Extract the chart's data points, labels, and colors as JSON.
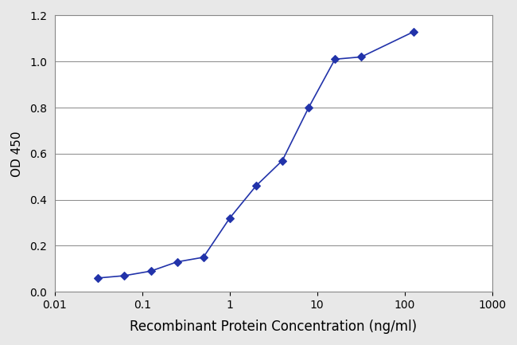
{
  "x": [
    0.031,
    0.062,
    0.125,
    0.25,
    0.5,
    1.0,
    2.0,
    4.0,
    8.0,
    16.0,
    32.0,
    128.0
  ],
  "y": [
    0.06,
    0.07,
    0.09,
    0.13,
    0.15,
    0.32,
    0.46,
    0.57,
    0.8,
    1.01,
    1.02,
    1.13
  ],
  "line_color": "#2233aa",
  "marker_color": "#2233aa",
  "marker": "D",
  "marker_size": 5,
  "linewidth": 1.2,
  "xlabel": "Recombinant Protein Concentration (ng/ml)",
  "ylabel": "OD 450",
  "xlim": [
    0.01,
    1000
  ],
  "ylim": [
    0.0,
    1.2
  ],
  "yticks": [
    0.0,
    0.2,
    0.4,
    0.6,
    0.8,
    1.0,
    1.2
  ],
  "xlabel_fontsize": 12,
  "ylabel_fontsize": 11,
  "tick_fontsize": 10,
  "background_color": "#ffffff",
  "grid_color": "#888888",
  "fig_background": "#e8e8e8",
  "box_color": "#888888"
}
